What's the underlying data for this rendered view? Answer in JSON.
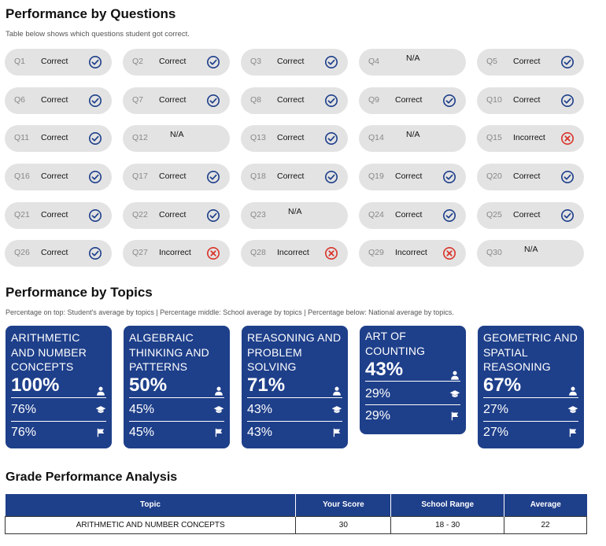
{
  "questions_section": {
    "title": "Performance by Questions",
    "subtitle": "Table below shows which questions student got correct."
  },
  "questions": [
    {
      "num": "Q1",
      "status": "Correct",
      "result": "correct"
    },
    {
      "num": "Q2",
      "status": "Correct",
      "result": "correct"
    },
    {
      "num": "Q3",
      "status": "Correct",
      "result": "correct"
    },
    {
      "num": "Q4",
      "status": "N/A",
      "result": "na"
    },
    {
      "num": "Q5",
      "status": "Correct",
      "result": "correct"
    },
    {
      "num": "Q6",
      "status": "Correct",
      "result": "correct"
    },
    {
      "num": "Q7",
      "status": "Correct",
      "result": "correct"
    },
    {
      "num": "Q8",
      "status": "Correct",
      "result": "correct"
    },
    {
      "num": "Q9",
      "status": "Correct",
      "result": "correct"
    },
    {
      "num": "Q10",
      "status": "Correct",
      "result": "correct"
    },
    {
      "num": "Q11",
      "status": "Correct",
      "result": "correct"
    },
    {
      "num": "Q12",
      "status": "N/A",
      "result": "na"
    },
    {
      "num": "Q13",
      "status": "Correct",
      "result": "correct"
    },
    {
      "num": "Q14",
      "status": "N/A",
      "result": "na"
    },
    {
      "num": "Q15",
      "status": "Incorrect",
      "result": "incorrect"
    },
    {
      "num": "Q16",
      "status": "Correct",
      "result": "correct"
    },
    {
      "num": "Q17",
      "status": "Correct",
      "result": "correct"
    },
    {
      "num": "Q18",
      "status": "Correct",
      "result": "correct"
    },
    {
      "num": "Q19",
      "status": "Correct",
      "result": "correct"
    },
    {
      "num": "Q20",
      "status": "Correct",
      "result": "correct"
    },
    {
      "num": "Q21",
      "status": "Correct",
      "result": "correct"
    },
    {
      "num": "Q22",
      "status": "Correct",
      "result": "correct"
    },
    {
      "num": "Q23",
      "status": "N/A",
      "result": "na"
    },
    {
      "num": "Q24",
      "status": "Correct",
      "result": "correct"
    },
    {
      "num": "Q25",
      "status": "Correct",
      "result": "correct"
    },
    {
      "num": "Q26",
      "status": "Correct",
      "result": "correct"
    },
    {
      "num": "Q27",
      "status": "Incorrect",
      "result": "incorrect"
    },
    {
      "num": "Q28",
      "status": "Incorrect",
      "result": "incorrect"
    },
    {
      "num": "Q29",
      "status": "Incorrect",
      "result": "incorrect"
    },
    {
      "num": "Q30",
      "status": "N/A",
      "result": "na"
    }
  ],
  "topics_section": {
    "title": "Performance by Topics",
    "subtitle": "Percentage on top: Student's average by topics | Percentage middle: School average by topics | Percentage below: National average by topics."
  },
  "topics": [
    {
      "name": "ARITHMETIC AND NUMBER CONCEPTS",
      "student": "100%",
      "school": "76%",
      "national": "76%"
    },
    {
      "name": "ALGEBRAIC THINKING AND PATTERNS",
      "student": "50%",
      "school": "45%",
      "national": "45%"
    },
    {
      "name": "REASONING AND PROBLEM SOLVING",
      "student": "71%",
      "school": "43%",
      "national": "43%"
    },
    {
      "name": "ART OF COUNTING",
      "student": "43%",
      "school": "29%",
      "national": "29%"
    },
    {
      "name": "GEOMETRIC AND SPATIAL REASONING",
      "student": "67%",
      "school": "27%",
      "national": "27%"
    }
  ],
  "grade_section": {
    "title": "Grade Performance Analysis",
    "headers": [
      "Topic",
      "Your Score",
      "School Range",
      "Average"
    ],
    "rows": [
      [
        "ARITHMETIC AND NUMBER CONCEPTS",
        "30",
        "18 - 30",
        "22"
      ]
    ]
  },
  "colors": {
    "card_blue": "#1e3f8a",
    "check_blue": "#1e3f8a",
    "incorrect_red": "#d9342b",
    "pill_gray": "#e3e3e3"
  },
  "icons": {
    "correct": "check-circle-icon",
    "incorrect": "x-circle-icon",
    "student": "person-icon",
    "school": "graduation-cap-icon",
    "national": "flag-icon"
  }
}
